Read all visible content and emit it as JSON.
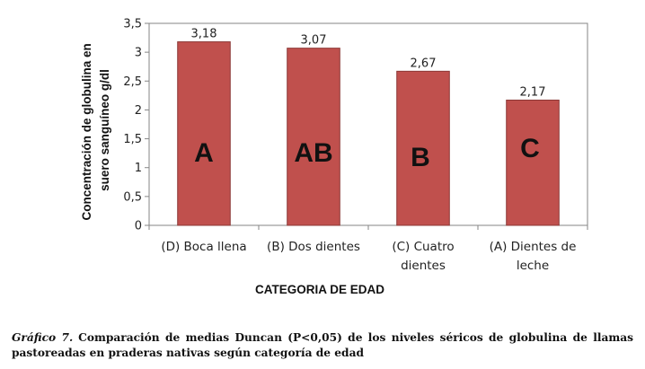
{
  "chart_data": {
    "type": "bar",
    "categories": [
      [
        "(D) Boca llena"
      ],
      [
        "(B) Dos dientes"
      ],
      [
        "(C) Cuatro",
        "dientes"
      ],
      [
        "(A) Dientes de",
        "leche"
      ]
    ],
    "values": [
      3.18,
      3.07,
      2.67,
      2.17
    ],
    "value_labels": [
      "3,18",
      "3,07",
      "2,67",
      "2,17"
    ],
    "group_letters": [
      "A",
      "AB",
      "B",
      "C"
    ],
    "xlabel": "CATEGORIA DE EDAD",
    "ylabel_lines": [
      "Concentración de globulina en",
      "suero sanguíneo  g/dl"
    ],
    "ylim": [
      0,
      3.5
    ],
    "y_ticks": [
      0,
      0.5,
      1,
      1.5,
      2,
      2.5,
      3,
      3.5
    ],
    "y_tick_labels": [
      "0",
      "0,5",
      "1",
      "1,5",
      "2",
      "2,5",
      "3",
      "3,5"
    ],
    "bar_color": "#c0504d",
    "bar_edge_color": "#8c3836",
    "grid": false,
    "legend": "none"
  },
  "caption": {
    "lead": "Gráfico 7.",
    "text": "Comparación de medias Duncan (P<0,05) de los niveles séricos de globulina de llamas pastoreadas en praderas nativas según categoría de edad"
  }
}
